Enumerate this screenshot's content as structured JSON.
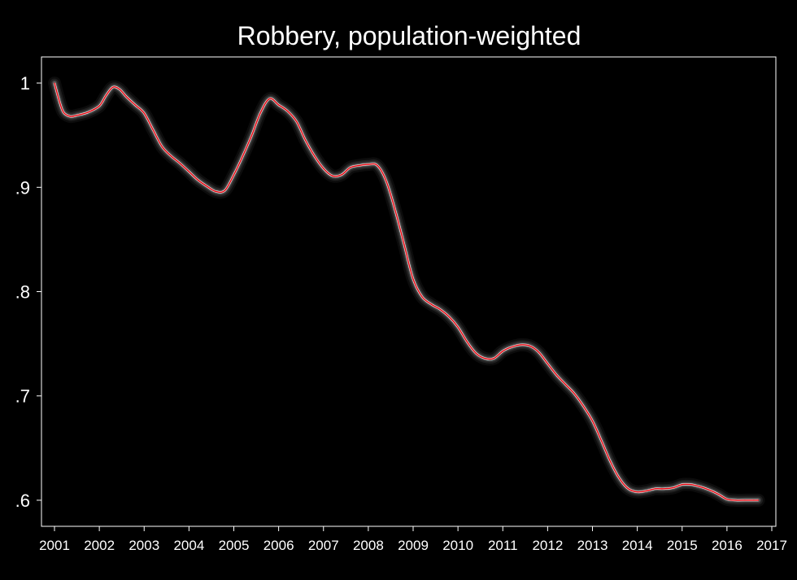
{
  "chart_data": {
    "type": "line",
    "title": "Robbery, population-weighted",
    "xlabel": "",
    "ylabel": "",
    "xlim": [
      2001,
      2017
    ],
    "ylim": [
      0.575,
      1.025
    ],
    "x_ticks": [
      2001,
      2002,
      2003,
      2004,
      2005,
      2006,
      2007,
      2008,
      2009,
      2010,
      2011,
      2012,
      2013,
      2014,
      2015,
      2016,
      2017
    ],
    "x_tick_labels": [
      "2001",
      "2002",
      "2003",
      "2004",
      "2005",
      "2006",
      "2007",
      "2008",
      "2009",
      "2010",
      "2011",
      "2012",
      "2013",
      "2014",
      "2015",
      "2016",
      "2017"
    ],
    "y_ticks": [
      0.6,
      0.7,
      0.8,
      0.9,
      1.0
    ],
    "y_tick_labels": [
      ".6",
      ".7",
      ".8",
      ".9",
      "1"
    ],
    "grid": false,
    "legend": "none",
    "series": [
      {
        "color": "#e8000b",
        "band_color": "#7a7a7a",
        "x": [
          2001.0,
          2001.1,
          2001.2,
          2001.35,
          2001.5,
          2001.75,
          2002.0,
          2002.15,
          2002.3,
          2002.45,
          2002.6,
          2002.8,
          2003.0,
          2003.2,
          2003.4,
          2003.6,
          2003.8,
          2004.0,
          2004.2,
          2004.4,
          2004.6,
          2004.8,
          2005.0,
          2005.2,
          2005.4,
          2005.6,
          2005.8,
          2006.0,
          2006.2,
          2006.4,
          2006.6,
          2006.8,
          2007.0,
          2007.2,
          2007.4,
          2007.6,
          2007.8,
          2008.0,
          2008.2,
          2008.4,
          2008.6,
          2008.8,
          2009.0,
          2009.2,
          2009.4,
          2009.6,
          2009.8,
          2010.0,
          2010.2,
          2010.4,
          2010.6,
          2010.8,
          2011.0,
          2011.2,
          2011.4,
          2011.6,
          2011.8,
          2012.0,
          2012.2,
          2012.4,
          2012.6,
          2012.8,
          2013.0,
          2013.2,
          2013.4,
          2013.6,
          2013.8,
          2014.0,
          2014.2,
          2014.4,
          2014.6,
          2014.8,
          2015.0,
          2015.2,
          2015.4,
          2015.6,
          2015.8,
          2016.0,
          2016.2,
          2016.4,
          2016.6,
          2016.7
        ],
        "values": [
          1.0,
          0.984,
          0.972,
          0.968,
          0.969,
          0.972,
          0.978,
          0.988,
          0.996,
          0.994,
          0.987,
          0.979,
          0.971,
          0.955,
          0.939,
          0.93,
          0.923,
          0.915,
          0.907,
          0.901,
          0.896,
          0.897,
          0.912,
          0.93,
          0.95,
          0.972,
          0.985,
          0.979,
          0.973,
          0.963,
          0.945,
          0.93,
          0.918,
          0.911,
          0.912,
          0.919,
          0.921,
          0.922,
          0.921,
          0.906,
          0.878,
          0.845,
          0.812,
          0.795,
          0.788,
          0.783,
          0.776,
          0.766,
          0.752,
          0.741,
          0.736,
          0.736,
          0.743,
          0.747,
          0.749,
          0.748,
          0.742,
          0.731,
          0.72,
          0.711,
          0.702,
          0.69,
          0.676,
          0.657,
          0.637,
          0.621,
          0.611,
          0.608,
          0.609,
          0.611,
          0.611,
          0.612,
          0.615,
          0.615,
          0.613,
          0.61,
          0.606,
          0.601,
          0.6,
          0.6,
          0.6,
          0.6
        ]
      }
    ]
  }
}
